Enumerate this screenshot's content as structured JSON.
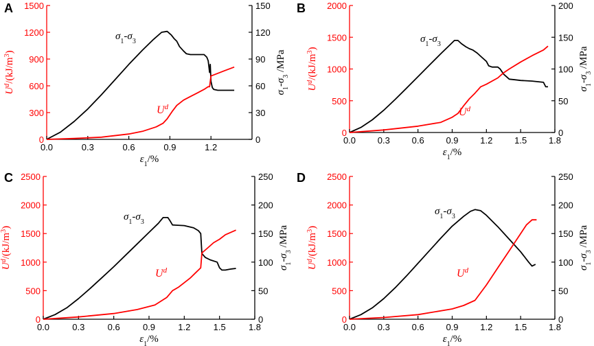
{
  "figure": {
    "colors": {
      "energy": "#ff0000",
      "stress": "#000000",
      "axis": "#000000"
    },
    "x_axis_title": "ε1/%",
    "y_left_title": "Ud/(kJ/m3)",
    "y_right_title": "σ1-σ3 /MPa"
  },
  "chart_data": [
    {
      "panel": "A",
      "type": "line",
      "xlabel": "ε1/%",
      "ylabel_left": "Ud/(kJ/m3)",
      "ylabel_right": "σ1-σ3 /MPa",
      "xlim": [
        0,
        1.5
      ],
      "xticks": [
        "0.0",
        "0.3",
        "0.6",
        "0.9",
        "1.2"
      ],
      "xtick_values": [
        0,
        0.3,
        0.6,
        0.9,
        1.2
      ],
      "ylim_left": [
        0,
        1500
      ],
      "yticks_left": [
        "0",
        "300",
        "600",
        "900",
        "1200",
        "1500"
      ],
      "ylim_right": [
        0,
        150
      ],
      "yticks_right": [
        "0",
        "30",
        "60",
        "90",
        "120",
        "150"
      ],
      "stress_label": "σ1-σ3",
      "energy_label": "Ud",
      "series": [
        {
          "name": "σ1-σ3",
          "axis": "right",
          "points": [
            [
              0,
              0
            ],
            [
              0.1,
              8
            ],
            [
              0.2,
              20
            ],
            [
              0.3,
              34
            ],
            [
              0.4,
              50
            ],
            [
              0.5,
              67
            ],
            [
              0.6,
              84
            ],
            [
              0.7,
              100
            ],
            [
              0.78,
              112
            ],
            [
              0.84,
              120
            ],
            [
              0.88,
              121
            ],
            [
              0.91,
              117
            ],
            [
              0.93,
              113
            ],
            [
              0.95,
              110
            ],
            [
              0.97,
              104
            ],
            [
              1.0,
              99
            ],
            [
              1.02,
              96
            ],
            [
              1.05,
              95
            ],
            [
              1.15,
              95
            ],
            [
              1.17,
              92
            ],
            [
              1.18,
              88
            ],
            [
              1.19,
              75
            ],
            [
              1.195,
              84
            ],
            [
              1.2,
              65
            ],
            [
              1.21,
              58
            ],
            [
              1.22,
              56
            ],
            [
              1.25,
              55
            ],
            [
              1.3,
              55
            ],
            [
              1.37,
              55
            ]
          ]
        },
        {
          "name": "Ud",
          "axis": "left",
          "points": [
            [
              0,
              0
            ],
            [
              0.2,
              10
            ],
            [
              0.4,
              25
            ],
            [
              0.6,
              60
            ],
            [
              0.7,
              90
            ],
            [
              0.8,
              140
            ],
            [
              0.85,
              180
            ],
            [
              0.88,
              230
            ],
            [
              0.92,
              320
            ],
            [
              0.95,
              380
            ],
            [
              1.0,
              440
            ],
            [
              1.05,
              480
            ],
            [
              1.1,
              520
            ],
            [
              1.15,
              560
            ],
            [
              1.18,
              590
            ],
            [
              1.19,
              590
            ],
            [
              1.2,
              710
            ],
            [
              1.25,
              740
            ],
            [
              1.3,
              770
            ],
            [
              1.37,
              810
            ]
          ]
        }
      ]
    },
    {
      "panel": "B",
      "type": "line",
      "xlabel": "ε1/%",
      "ylabel_left": "Ud/(kJ/m3)",
      "ylabel_right": "σ1-σ3 /MPa",
      "xlim": [
        0,
        1.8
      ],
      "xticks": [
        "0.0",
        "0.3",
        "0.6",
        "0.9",
        "1.2",
        "1.5",
        "1.8"
      ],
      "xtick_values": [
        0,
        0.3,
        0.6,
        0.9,
        1.2,
        1.5,
        1.8
      ],
      "ylim_left": [
        0,
        2000
      ],
      "yticks_left": [
        "0",
        "500",
        "1000",
        "1500",
        "2000"
      ],
      "ylim_right": [
        0,
        200
      ],
      "yticks_right": [
        "0",
        "50",
        "100",
        "150",
        "200"
      ],
      "stress_label": "σ1-σ3",
      "energy_label": "Ud",
      "series": [
        {
          "name": "σ1-σ3",
          "axis": "right",
          "points": [
            [
              0,
              0
            ],
            [
              0.1,
              8
            ],
            [
              0.2,
              20
            ],
            [
              0.3,
              35
            ],
            [
              0.4,
              52
            ],
            [
              0.5,
              70
            ],
            [
              0.6,
              88
            ],
            [
              0.7,
              106
            ],
            [
              0.8,
              124
            ],
            [
              0.88,
              138
            ],
            [
              0.92,
              145
            ],
            [
              0.95,
              145
            ],
            [
              0.98,
              140
            ],
            [
              1.02,
              135
            ],
            [
              1.05,
              132
            ],
            [
              1.08,
              130
            ],
            [
              1.12,
              125
            ],
            [
              1.15,
              120
            ],
            [
              1.2,
              112
            ],
            [
              1.22,
              105
            ],
            [
              1.25,
              103
            ],
            [
              1.3,
              103
            ],
            [
              1.32,
              100
            ],
            [
              1.35,
              92
            ],
            [
              1.4,
              84
            ],
            [
              1.45,
              83
            ],
            [
              1.5,
              82
            ],
            [
              1.6,
              81
            ],
            [
              1.7,
              79
            ],
            [
              1.72,
              72
            ],
            [
              1.74,
              72
            ]
          ]
        },
        {
          "name": "Ud",
          "axis": "left",
          "points": [
            [
              0,
              0
            ],
            [
              0.3,
              40
            ],
            [
              0.6,
              100
            ],
            [
              0.8,
              160
            ],
            [
              0.9,
              240
            ],
            [
              0.95,
              300
            ],
            [
              1.0,
              420
            ],
            [
              1.05,
              530
            ],
            [
              1.1,
              620
            ],
            [
              1.15,
              720
            ],
            [
              1.2,
              760
            ],
            [
              1.3,
              860
            ],
            [
              1.35,
              940
            ],
            [
              1.4,
              1000
            ],
            [
              1.5,
              1110
            ],
            [
              1.6,
              1210
            ],
            [
              1.7,
              1300
            ],
            [
              1.74,
              1360
            ]
          ]
        }
      ]
    },
    {
      "panel": "C",
      "type": "line",
      "xlabel": "ε1/%",
      "ylabel_left": "Ud/(kJ/m3)",
      "ylabel_right": "σ1-σ3 /MPa",
      "xlim": [
        0,
        1.8
      ],
      "xticks": [
        "0.0",
        "0.3",
        "0.6",
        "0.9",
        "1.2",
        "1.5",
        "1.8"
      ],
      "xtick_values": [
        0,
        0.3,
        0.6,
        0.9,
        1.2,
        1.5,
        1.8
      ],
      "ylim_left": [
        0,
        2500
      ],
      "yticks_left": [
        "0",
        "500",
        "1000",
        "1500",
        "2000",
        "2500"
      ],
      "ylim_right": [
        0,
        250
      ],
      "yticks_right": [
        "0",
        "50",
        "100",
        "150",
        "200",
        "250"
      ],
      "stress_label": "σ1-σ3",
      "energy_label": "Ud",
      "series": [
        {
          "name": "σ1-σ3",
          "axis": "right",
          "points": [
            [
              0,
              0
            ],
            [
              0.1,
              8
            ],
            [
              0.2,
              20
            ],
            [
              0.3,
              36
            ],
            [
              0.4,
              54
            ],
            [
              0.5,
              73
            ],
            [
              0.6,
              92
            ],
            [
              0.7,
              112
            ],
            [
              0.8,
              132
            ],
            [
              0.9,
              152
            ],
            [
              0.98,
              168
            ],
            [
              1.02,
              178
            ],
            [
              1.06,
              178
            ],
            [
              1.08,
              172
            ],
            [
              1.1,
              165
            ],
            [
              1.2,
              164
            ],
            [
              1.28,
              160
            ],
            [
              1.32,
              155
            ],
            [
              1.34,
              150
            ],
            [
              1.35,
              115
            ],
            [
              1.38,
              108
            ],
            [
              1.42,
              104
            ],
            [
              1.48,
              100
            ],
            [
              1.5,
              90
            ],
            [
              1.52,
              86
            ],
            [
              1.55,
              86
            ],
            [
              1.6,
              88
            ],
            [
              1.64,
              89
            ]
          ]
        },
        {
          "name": "Ud",
          "axis": "left",
          "points": [
            [
              0,
              0
            ],
            [
              0.3,
              40
            ],
            [
              0.6,
              100
            ],
            [
              0.8,
              170
            ],
            [
              0.95,
              250
            ],
            [
              1.05,
              380
            ],
            [
              1.1,
              500
            ],
            [
              1.15,
              560
            ],
            [
              1.2,
              640
            ],
            [
              1.25,
              720
            ],
            [
              1.3,
              820
            ],
            [
              1.34,
              900
            ],
            [
              1.35,
              1160
            ],
            [
              1.4,
              1250
            ],
            [
              1.45,
              1340
            ],
            [
              1.5,
              1400
            ],
            [
              1.55,
              1480
            ],
            [
              1.64,
              1560
            ]
          ]
        }
      ]
    },
    {
      "panel": "D",
      "type": "line",
      "xlabel": "ε1/%",
      "ylabel_left": "Ud/(kJ/m3)",
      "ylabel_right": "σ1-σ3 /MPa",
      "xlim": [
        0,
        1.8
      ],
      "xticks": [
        "0.0",
        "0.3",
        "0.6",
        "0.9",
        "1.2",
        "1.5",
        "1.8"
      ],
      "xtick_values": [
        0,
        0.3,
        0.6,
        0.9,
        1.2,
        1.5,
        1.8
      ],
      "ylim_left": [
        0,
        2500
      ],
      "yticks_left": [
        "0",
        "500",
        "1000",
        "1500",
        "2000",
        "2500"
      ],
      "ylim_right": [
        0,
        250
      ],
      "yticks_right": [
        "0",
        "50",
        "100",
        "150",
        "200",
        "250"
      ],
      "stress_label": "σ1-σ3",
      "energy_label": "Ud",
      "series": [
        {
          "name": "σ1-σ3",
          "axis": "right",
          "points": [
            [
              0,
              0
            ],
            [
              0.1,
              8
            ],
            [
              0.2,
              20
            ],
            [
              0.3,
              36
            ],
            [
              0.4,
              55
            ],
            [
              0.5,
              76
            ],
            [
              0.6,
              98
            ],
            [
              0.7,
              120
            ],
            [
              0.8,
              142
            ],
            [
              0.9,
              163
            ],
            [
              1.0,
              180
            ],
            [
              1.06,
              189
            ],
            [
              1.1,
              192
            ],
            [
              1.15,
              190
            ],
            [
              1.2,
              182
            ],
            [
              1.3,
              162
            ],
            [
              1.4,
              140
            ],
            [
              1.5,
              118
            ],
            [
              1.57,
              100
            ],
            [
              1.6,
              93
            ],
            [
              1.63,
              96
            ]
          ]
        },
        {
          "name": "Ud",
          "axis": "left",
          "points": [
            [
              0,
              0
            ],
            [
              0.3,
              30
            ],
            [
              0.6,
              80
            ],
            [
              0.9,
              180
            ],
            [
              1.0,
              240
            ],
            [
              1.1,
              330
            ],
            [
              1.2,
              600
            ],
            [
              1.3,
              900
            ],
            [
              1.4,
              1200
            ],
            [
              1.5,
              1500
            ],
            [
              1.55,
              1650
            ],
            [
              1.6,
              1740
            ],
            [
              1.64,
              1740
            ]
          ]
        }
      ]
    }
  ]
}
